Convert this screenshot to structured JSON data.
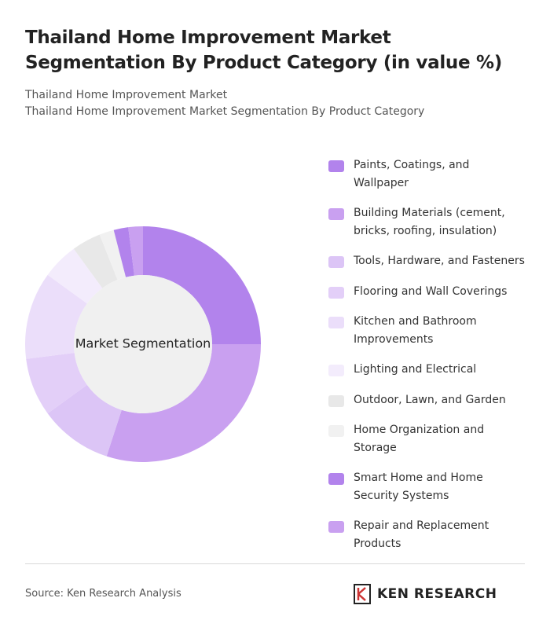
{
  "chart_data": {
    "type": "donut",
    "title": "Thailand Home Improvement Market Segmentation By Product Category (in value %)",
    "subtitle": [
      "Thailand Home Improvement Market",
      "Thailand Home Improvement Market Segmentation By Product Category"
    ],
    "center_label": "Market Segmentation",
    "categories": [
      "Paints, Coatings, and Wallpaper",
      "Building Materials (cement, bricks, roofing, insulation)",
      "Tools, Hardware, and Fasteners",
      "Flooring and Wall Coverings",
      "Kitchen and Bathroom Improvements",
      "Lighting and Electrical",
      "Outdoor, Lawn, and Garden",
      "Home Organization and Storage",
      "Smart Home and Home Security Systems",
      "Repair and Replacement Products"
    ],
    "values": [
      25,
      30,
      10,
      8,
      12,
      5,
      4,
      2,
      2,
      2
    ],
    "colors": [
      "#b283ec",
      "#c9a0f0",
      "#dcc5f6",
      "#e3cff8",
      "#ebdefa",
      "#f3ecfc",
      "#e8e8e8",
      "#f1f1f1",
      "#b283ec",
      "#c9a0f0"
    ]
  },
  "footer": {
    "source": "Source: Ken Research Analysis",
    "brand": "KEN RESEARCH"
  }
}
